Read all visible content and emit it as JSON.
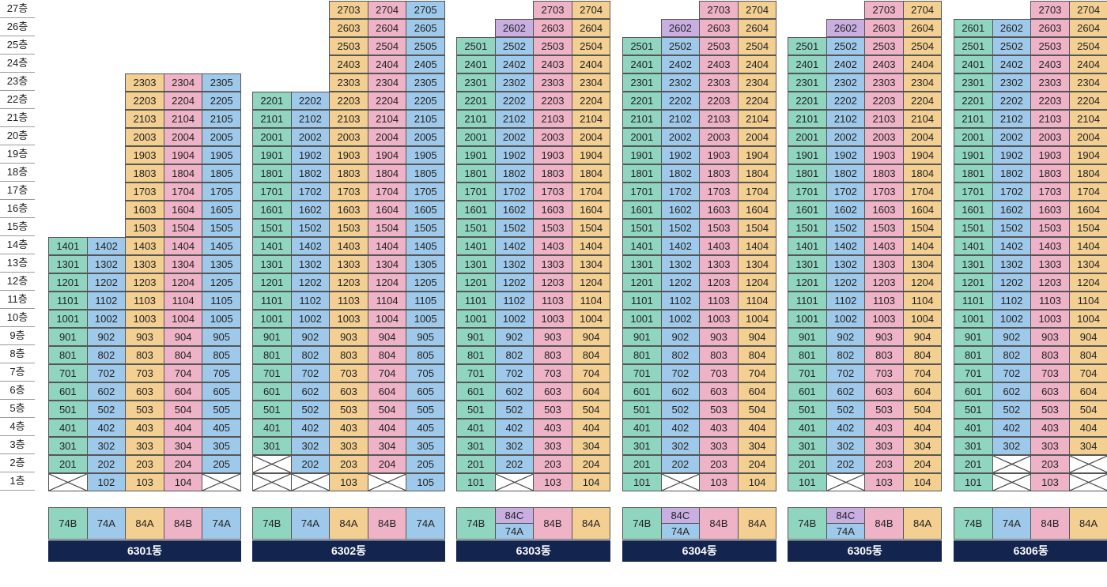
{
  "colors": {
    "74B": "#8fd5c0",
    "74A": "#9fc9ea",
    "84A": "#f3cf92",
    "84B": "#efb3c7",
    "84C": "#c9aee2",
    "empty": "#ffffff",
    "building_name_bg": "#13244f"
  },
  "floors": [
    "27층",
    "26층",
    "25층",
    "24층",
    "23층",
    "22층",
    "21층",
    "20층",
    "19층",
    "18층",
    "17층",
    "16층",
    "15층",
    "14층",
    "13층",
    "12층",
    "11층",
    "10층",
    "9층",
    "8층",
    "7층",
    "6층",
    "5층",
    "4층",
    "3층",
    "2층",
    "1층"
  ],
  "buildings": [
    {
      "name": "6301동",
      "columns": [
        {
          "type": "74B",
          "top": 14,
          "bottom": 1,
          "empty_floors": [
            1
          ]
        },
        {
          "type": "74A",
          "top": 14,
          "bottom": 1,
          "empty_floors": []
        },
        {
          "type": "84A",
          "top": 23,
          "bottom": 1,
          "empty_floors": []
        },
        {
          "type": "84B",
          "top": 23,
          "bottom": 1,
          "empty_floors": []
        },
        {
          "type": "74A",
          "top": 23,
          "bottom": 1,
          "empty_floors": [
            1
          ]
        }
      ],
      "legend": [
        {
          "labels": [
            "74B"
          ]
        },
        {
          "labels": [
            "74A"
          ]
        },
        {
          "labels": [
            "84A"
          ]
        },
        {
          "labels": [
            "84B"
          ]
        },
        {
          "labels": [
            "74A"
          ]
        }
      ]
    },
    {
      "name": "6302동",
      "columns": [
        {
          "type": "74B",
          "top": 22,
          "bottom": 1,
          "empty_floors": [
            1,
            2
          ]
        },
        {
          "type": "74A",
          "top": 22,
          "bottom": 1,
          "empty_floors": [
            1
          ]
        },
        {
          "type": "84A",
          "top": 27,
          "bottom": 1,
          "empty_floors": []
        },
        {
          "type": "84B",
          "top": 27,
          "bottom": 1,
          "empty_floors": [
            1
          ]
        },
        {
          "type": "74A",
          "top": 27,
          "bottom": 1,
          "empty_floors": []
        }
      ],
      "legend": [
        {
          "labels": [
            "74B"
          ]
        },
        {
          "labels": [
            "74A"
          ]
        },
        {
          "labels": [
            "84A"
          ]
        },
        {
          "labels": [
            "84B"
          ]
        },
        {
          "labels": [
            "74A"
          ]
        }
      ]
    },
    {
      "name": "6303동",
      "columns": [
        {
          "type": "74B",
          "top": 25,
          "bottom": 1,
          "empty_floors": []
        },
        {
          "type": "74A",
          "top": 26,
          "bottom": 1,
          "empty_floors": [
            1
          ],
          "overrides": {
            "26": "84C"
          }
        },
        {
          "type": "84B",
          "top": 27,
          "bottom": 1,
          "empty_floors": []
        },
        {
          "type": "84A",
          "top": 27,
          "bottom": 1,
          "empty_floors": []
        }
      ],
      "legend": [
        {
          "labels": [
            "74B"
          ]
        },
        {
          "labels": [
            "84C",
            "74A"
          ]
        },
        {
          "labels": [
            "84B"
          ]
        },
        {
          "labels": [
            "84A"
          ]
        }
      ]
    },
    {
      "name": "6304동",
      "columns": [
        {
          "type": "74B",
          "top": 25,
          "bottom": 1,
          "empty_floors": []
        },
        {
          "type": "74A",
          "top": 26,
          "bottom": 1,
          "empty_floors": [
            1
          ],
          "overrides": {
            "26": "84C"
          }
        },
        {
          "type": "84B",
          "top": 27,
          "bottom": 1,
          "empty_floors": []
        },
        {
          "type": "84A",
          "top": 27,
          "bottom": 1,
          "empty_floors": []
        }
      ],
      "legend": [
        {
          "labels": [
            "74B"
          ]
        },
        {
          "labels": [
            "84C",
            "74A"
          ]
        },
        {
          "labels": [
            "84B"
          ]
        },
        {
          "labels": [
            "84A"
          ]
        }
      ]
    },
    {
      "name": "6305동",
      "columns": [
        {
          "type": "74B",
          "top": 25,
          "bottom": 1,
          "empty_floors": []
        },
        {
          "type": "74A",
          "top": 26,
          "bottom": 1,
          "empty_floors": [
            1
          ],
          "overrides": {
            "26": "84C"
          }
        },
        {
          "type": "84B",
          "top": 27,
          "bottom": 1,
          "empty_floors": []
        },
        {
          "type": "84A",
          "top": 27,
          "bottom": 1,
          "empty_floors": []
        }
      ],
      "legend": [
        {
          "labels": [
            "74B"
          ]
        },
        {
          "labels": [
            "84C",
            "74A"
          ]
        },
        {
          "labels": [
            "84B"
          ]
        },
        {
          "labels": [
            "84A"
          ]
        }
      ]
    },
    {
      "name": "6306동",
      "columns": [
        {
          "type": "74B",
          "top": 26,
          "bottom": 1,
          "empty_floors": []
        },
        {
          "type": "74A",
          "top": 26,
          "bottom": 1,
          "empty_floors": [
            1,
            2
          ]
        },
        {
          "type": "84B",
          "top": 27,
          "bottom": 1,
          "empty_floors": []
        },
        {
          "type": "84A",
          "top": 27,
          "bottom": 1,
          "empty_floors": [
            1,
            2
          ]
        }
      ],
      "legend": [
        {
          "labels": [
            "74B"
          ]
        },
        {
          "labels": [
            "74A"
          ]
        },
        {
          "labels": [
            "84B"
          ]
        },
        {
          "labels": [
            "84A"
          ]
        }
      ]
    }
  ]
}
